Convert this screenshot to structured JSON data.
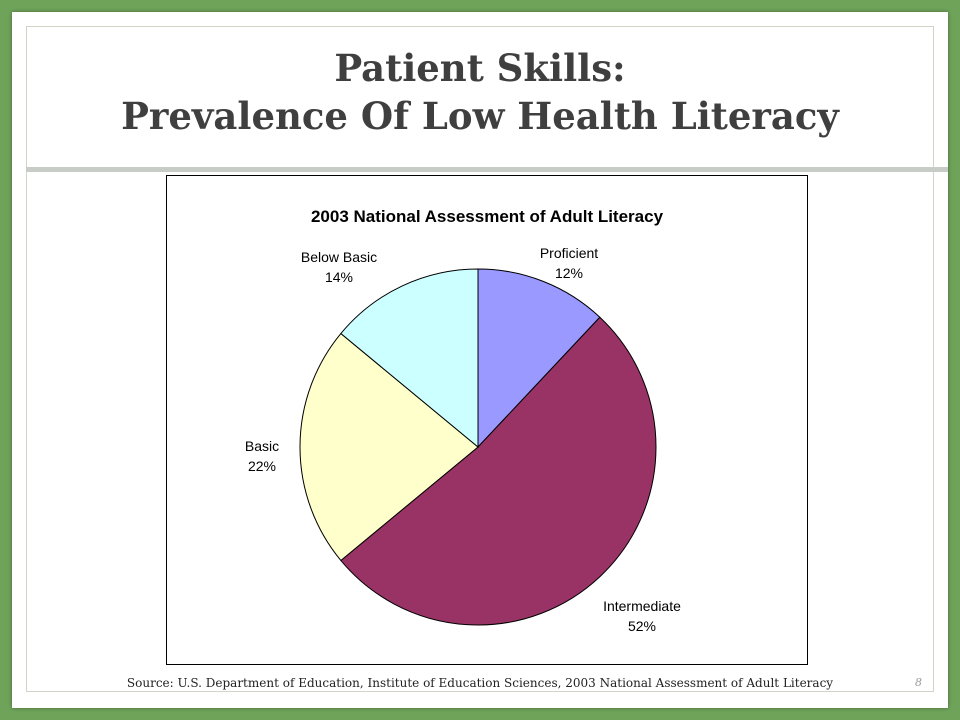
{
  "slide": {
    "title_line1": "Patient Skills:",
    "title_line2": "Prevalence Of Low Health Literacy",
    "source": "Source: U.S. Department of Education, Institute of Education Sciences, 2003 National Assessment of Adult Literacy",
    "page_number": "8"
  },
  "chart_data": {
    "type": "pie",
    "title": "2003 National Assessment of Adult Literacy",
    "categories": [
      "Proficient",
      "Intermediate",
      "Basic",
      "Below Basic"
    ],
    "values": [
      12,
      52,
      22,
      14
    ],
    "value_labels": [
      "12%",
      "52%",
      "22%",
      "14%"
    ],
    "colors": [
      "#9999ff",
      "#993366",
      "#ffffcc",
      "#ccffff"
    ],
    "start_angle": "12 o'clock",
    "direction": "clockwise"
  }
}
